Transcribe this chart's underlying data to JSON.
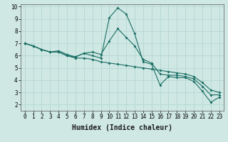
{
  "xlabel": "Humidex (Indice chaleur)",
  "ylabel": "",
  "bg_color": "#cfe8e4",
  "grid_color": "#b8d8d4",
  "line_color": "#1a6e64",
  "xlim": [
    -0.5,
    23.5
  ],
  "ylim": [
    1.5,
    10.2
  ],
  "xticks": [
    0,
    1,
    2,
    3,
    4,
    5,
    6,
    7,
    8,
    9,
    10,
    11,
    12,
    13,
    14,
    15,
    16,
    17,
    18,
    19,
    20,
    21,
    22,
    23
  ],
  "yticks": [
    2,
    3,
    4,
    5,
    6,
    7,
    8,
    9,
    10
  ],
  "line1_x": [
    0,
    1,
    2,
    3,
    4,
    5,
    6,
    7,
    8,
    9,
    10,
    11,
    12,
    13,
    14,
    15,
    16,
    17,
    18,
    19,
    20,
    21,
    22,
    23
  ],
  "line1_y": [
    7.0,
    6.8,
    6.5,
    6.3,
    6.3,
    6.0,
    5.9,
    6.2,
    6.0,
    5.8,
    9.1,
    9.9,
    9.4,
    7.8,
    5.5,
    5.3,
    3.6,
    4.3,
    4.2,
    4.2,
    3.9,
    3.1,
    2.2,
    2.6
  ],
  "line2_x": [
    0,
    1,
    2,
    3,
    4,
    5,
    6,
    7,
    8,
    9,
    10,
    11,
    12,
    13,
    14,
    15,
    16,
    17,
    18,
    19,
    20,
    21,
    22,
    23
  ],
  "line2_y": [
    7.0,
    6.8,
    6.5,
    6.3,
    6.3,
    6.0,
    5.8,
    5.8,
    5.7,
    5.5,
    5.4,
    5.3,
    5.2,
    5.1,
    5.0,
    4.9,
    4.8,
    4.7,
    4.6,
    4.5,
    4.3,
    3.8,
    3.2,
    3.0
  ],
  "line3_x": [
    0,
    1,
    2,
    3,
    4,
    5,
    6,
    7,
    8,
    9,
    10,
    11,
    12,
    13,
    14,
    15,
    16,
    17,
    18,
    19,
    20,
    21,
    22,
    23
  ],
  "line3_y": [
    7.0,
    6.8,
    6.5,
    6.3,
    6.4,
    6.1,
    5.9,
    6.2,
    6.3,
    6.1,
    7.2,
    8.2,
    7.5,
    6.8,
    5.7,
    5.4,
    4.5,
    4.4,
    4.4,
    4.3,
    4.1,
    3.5,
    2.8,
    2.8
  ],
  "tick_fontsize": 5.5,
  "xlabel_fontsize": 7,
  "xlabel_fontweight": "bold"
}
